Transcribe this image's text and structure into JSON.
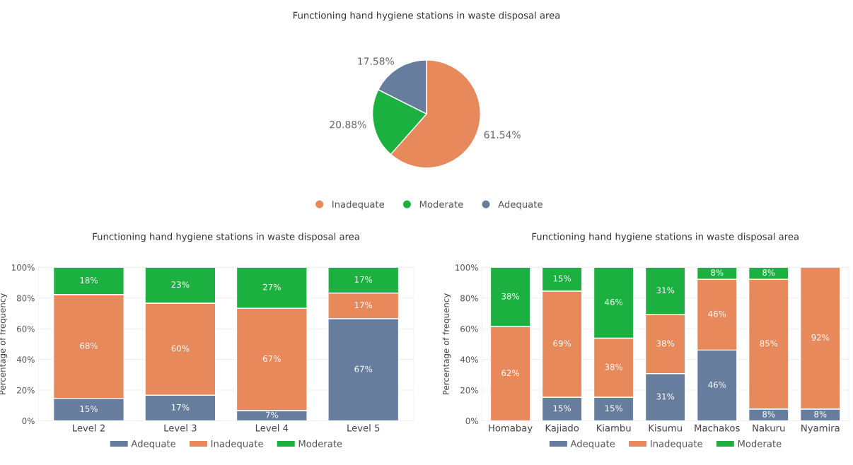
{
  "chart_data": [
    {
      "type": "pie",
      "title": "Functioning hand hygiene stations in waste disposal area",
      "categories": [
        "Inadequate",
        "Moderate",
        "Adequate"
      ],
      "values": [
        61.54,
        20.88,
        17.58
      ],
      "colors": [
        "#e8895c",
        "#1bb040",
        "#667d9e"
      ],
      "value_labels": [
        "61.54%",
        "20.88%",
        "17.58%"
      ],
      "legend": "bottom"
    },
    {
      "type": "bar",
      "stacked": true,
      "title": "Functioning hand hygiene stations in waste disposal area",
      "ylabel": "Percentage of frequency",
      "categories": [
        "Level 2",
        "Level 3",
        "Level 4",
        "Level 5"
      ],
      "ylim": [
        0,
        100
      ],
      "yticks": [
        {
          "value": 0,
          "label": "0%"
        },
        {
          "value": 20,
          "label": "20%"
        },
        {
          "value": 40,
          "label": "40%"
        },
        {
          "value": 60,
          "label": "60%"
        },
        {
          "value": 80,
          "label": "80%"
        },
        {
          "value": 100,
          "label": "100%"
        }
      ],
      "grid": "y",
      "legend": "bottom",
      "series": [
        {
          "name": "Adequate",
          "color": "#667d9e",
          "values": [
            14.7,
            16.7,
            6.7,
            66.6
          ],
          "value_labels": [
            "15%",
            "17%",
            "7%",
            "67%"
          ]
        },
        {
          "name": "Inadequate",
          "color": "#e8895c",
          "values": [
            67.6,
            60.0,
            66.7,
            16.7
          ],
          "value_labels": [
            "68%",
            "60%",
            "67%",
            "17%"
          ]
        },
        {
          "name": "Moderate",
          "color": "#1bb040",
          "values": [
            17.7,
            23.3,
            26.6,
            16.7
          ],
          "value_labels": [
            "18%",
            "23%",
            "27%",
            "17%"
          ]
        }
      ]
    },
    {
      "type": "bar",
      "stacked": true,
      "title": "Functioning hand hygiene stations in waste disposal area",
      "ylabel": "Percentage of frequency",
      "categories": [
        "Homabay",
        "Kajiado",
        "Kiambu",
        "Kisumu",
        "Machakos",
        "Nakuru",
        "Nyamira"
      ],
      "ylim": [
        0,
        100
      ],
      "yticks": [
        {
          "value": 0,
          "label": "0%"
        },
        {
          "value": 20,
          "label": "20%"
        },
        {
          "value": 40,
          "label": "40%"
        },
        {
          "value": 60,
          "label": "60%"
        },
        {
          "value": 80,
          "label": "80%"
        },
        {
          "value": 100,
          "label": "100%"
        }
      ],
      "grid": "y",
      "legend": "bottom",
      "series": [
        {
          "name": "Adequate",
          "color": "#667d9e",
          "values": [
            null,
            15.4,
            15.4,
            30.8,
            46.1,
            7.7,
            7.7
          ],
          "value_labels": [
            null,
            "15%",
            "15%",
            "31%",
            "46%",
            "8%",
            "8%"
          ]
        },
        {
          "name": "Inadequate",
          "color": "#e8895c",
          "values": [
            61.5,
            69.2,
            38.5,
            38.4,
            46.2,
            84.6,
            92.3
          ],
          "value_labels": [
            "62%",
            "69%",
            "38%",
            "38%",
            "46%",
            "85%",
            "92%"
          ]
        },
        {
          "name": "Moderate",
          "color": "#1bb040",
          "values": [
            38.5,
            15.4,
            46.1,
            30.8,
            7.7,
            7.7,
            null
          ],
          "value_labels": [
            "38%",
            "15%",
            "46%",
            "31%",
            "8%",
            "8%",
            null
          ]
        }
      ]
    }
  ]
}
